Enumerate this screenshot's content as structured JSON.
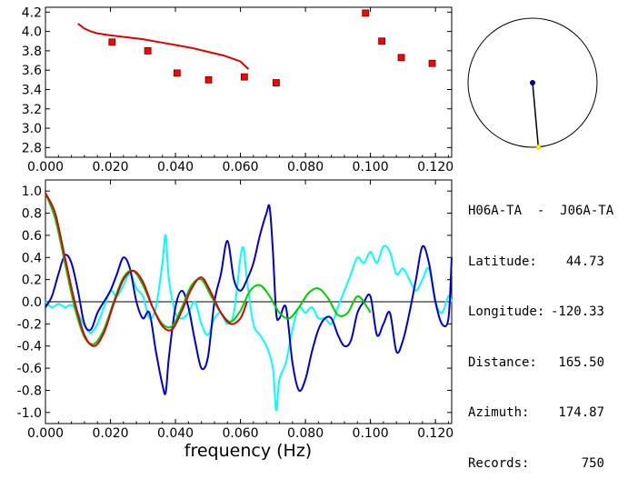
{
  "station": {
    "pair": "H06A-TA  -  J06A-TA",
    "latitude_label": "Latitude:",
    "latitude": "44.73",
    "longitude_label": "Longitude:",
    "longitude": "-120.33",
    "distance_label": "Distance:",
    "distance": "165.50",
    "azimuth_label": "Azimuth:",
    "azimuth": "174.87",
    "records_label": "Records:",
    "records": "750",
    "azimuth_deg": 174.87
  },
  "chart_data": [
    {
      "type": "scatter",
      "title": "",
      "xlim": [
        0,
        0.125
      ],
      "ylim": [
        2.7,
        4.25
      ],
      "x_ticks": [
        "0.000",
        "0.020",
        "0.040",
        "0.060",
        "0.080",
        "0.100",
        "0.120"
      ],
      "y_ticks": [
        "2.8",
        "3.0",
        "3.2",
        "3.4",
        "3.6",
        "3.8",
        "4.0",
        "4.2"
      ],
      "points": [
        [
          0.0205,
          3.89
        ],
        [
          0.0315,
          3.8
        ],
        [
          0.0405,
          3.57
        ],
        [
          0.0502,
          3.5
        ],
        [
          0.0612,
          3.53
        ],
        [
          0.071,
          3.47
        ],
        [
          0.0985,
          4.19
        ],
        [
          0.1035,
          3.9
        ],
        [
          0.1095,
          3.73
        ],
        [
          0.119,
          3.67
        ]
      ],
      "curve": [
        [
          0.01,
          4.08
        ],
        [
          0.012,
          4.03
        ],
        [
          0.014,
          4.0
        ],
        [
          0.016,
          3.98
        ],
        [
          0.02,
          3.96
        ],
        [
          0.025,
          3.94
        ],
        [
          0.03,
          3.92
        ],
        [
          0.035,
          3.89
        ],
        [
          0.04,
          3.86
        ],
        [
          0.045,
          3.83
        ],
        [
          0.05,
          3.79
        ],
        [
          0.055,
          3.75
        ],
        [
          0.06,
          3.69
        ],
        [
          0.0625,
          3.61
        ]
      ],
      "colors": {
        "points": "#ff0000",
        "curve": "#dd0000"
      }
    },
    {
      "type": "line",
      "xlim": [
        0,
        0.125
      ],
      "ylim": [
        -1.1,
        1.1
      ],
      "xlabel": "frequency (Hz)",
      "x_ticks": [
        "0.000",
        "0.020",
        "0.040",
        "0.060",
        "0.080",
        "0.100",
        "0.120"
      ],
      "y_ticks": [
        "1.0",
        "0.8",
        "0.6",
        "0.4",
        "0.2",
        "0.0",
        "-0.2",
        "-0.4",
        "-0.6",
        "-0.8",
        "-1.0"
      ],
      "series": [
        {
          "color": "#00ffff",
          "x": [
            0.0,
            0.002,
            0.004,
            0.006,
            0.008,
            0.01,
            0.012,
            0.014,
            0.016,
            0.018,
            0.02,
            0.022,
            0.024,
            0.026,
            0.028,
            0.03,
            0.032,
            0.034,
            0.036,
            0.037,
            0.038,
            0.04,
            0.042,
            0.044,
            0.046,
            0.048,
            0.05,
            0.052,
            0.054,
            0.056,
            0.058,
            0.06,
            0.061,
            0.062,
            0.064,
            0.066,
            0.068,
            0.07,
            0.071,
            0.072,
            0.074,
            0.076,
            0.078,
            0.08,
            0.082,
            0.084,
            0.086,
            0.088,
            0.09,
            0.092,
            0.094,
            0.096,
            0.098,
            0.1,
            0.102,
            0.104,
            0.106,
            0.108,
            0.11,
            0.112,
            0.114,
            0.116,
            0.118,
            0.12,
            0.122,
            0.124,
            0.125
          ],
          "y": [
            0.0,
            -0.05,
            -0.02,
            -0.05,
            -0.03,
            -0.1,
            -0.22,
            -0.28,
            -0.2,
            -0.05,
            0.1,
            0.05,
            0.15,
            0.25,
            0.12,
            0.05,
            -0.15,
            -0.05,
            0.35,
            0.6,
            0.2,
            -0.1,
            -0.15,
            -0.1,
            0.0,
            -0.2,
            -0.3,
            -0.15,
            -0.1,
            -0.2,
            -0.1,
            0.4,
            0.48,
            0.2,
            -0.2,
            -0.3,
            -0.4,
            -0.6,
            -0.98,
            -0.7,
            -0.55,
            -0.25,
            -0.05,
            -0.1,
            -0.05,
            -0.15,
            -0.15,
            -0.2,
            -0.05,
            0.1,
            0.25,
            0.4,
            0.35,
            0.45,
            0.35,
            0.5,
            0.45,
            0.25,
            0.3,
            0.2,
            0.1,
            0.2,
            0.3,
            0.0,
            -0.1,
            0.05,
            0.0
          ]
        },
        {
          "color": "#0000cc",
          "x": [
            0.0,
            0.002,
            0.004,
            0.006,
            0.008,
            0.01,
            0.012,
            0.014,
            0.016,
            0.018,
            0.02,
            0.022,
            0.024,
            0.026,
            0.028,
            0.03,
            0.032,
            0.034,
            0.036,
            0.037,
            0.038,
            0.04,
            0.042,
            0.044,
            0.046,
            0.048,
            0.05,
            0.052,
            0.054,
            0.056,
            0.058,
            0.06,
            0.062,
            0.064,
            0.066,
            0.068,
            0.069,
            0.07,
            0.071,
            0.072,
            0.074,
            0.076,
            0.078,
            0.08,
            0.082,
            0.084,
            0.086,
            0.088,
            0.09,
            0.092,
            0.094,
            0.096,
            0.098,
            0.1,
            0.102,
            0.104,
            0.106,
            0.108,
            0.11,
            0.112,
            0.114,
            0.116,
            0.118,
            0.12,
            0.122,
            0.124,
            0.125
          ],
          "y": [
            -0.05,
            0.05,
            0.25,
            0.42,
            0.35,
            0.1,
            -0.2,
            -0.25,
            -0.1,
            0.0,
            0.1,
            0.25,
            0.4,
            0.3,
            0.0,
            -0.15,
            -0.1,
            -0.45,
            -0.75,
            -0.82,
            -0.5,
            -0.05,
            0.1,
            -0.05,
            -0.35,
            -0.6,
            -0.5,
            0.0,
            0.25,
            0.55,
            0.2,
            0.1,
            0.2,
            0.35,
            0.6,
            0.8,
            0.85,
            0.45,
            -0.1,
            -0.15,
            -0.05,
            -0.55,
            -0.8,
            -0.7,
            -0.45,
            -0.25,
            -0.15,
            -0.15,
            -0.3,
            -0.4,
            -0.35,
            -0.1,
            0.0,
            0.05,
            -0.3,
            -0.2,
            -0.1,
            -0.45,
            -0.35,
            -0.1,
            0.2,
            0.5,
            0.35,
            0.0,
            -0.2,
            -0.15,
            0.4
          ]
        },
        {
          "color": "#00cc00",
          "x": [
            0.0,
            0.003,
            0.006,
            0.009,
            0.012,
            0.015,
            0.018,
            0.021,
            0.024,
            0.027,
            0.03,
            0.033,
            0.036,
            0.039,
            0.042,
            0.045,
            0.048,
            0.051,
            0.054,
            0.057,
            0.06,
            0.063,
            0.066,
            0.069,
            0.072,
            0.075,
            0.078,
            0.081,
            0.084,
            0.087,
            0.09,
            0.093,
            0.096,
            0.099,
            0.1
          ],
          "y": [
            0.98,
            0.75,
            0.35,
            -0.05,
            -0.32,
            -0.38,
            -0.25,
            0.0,
            0.22,
            0.28,
            0.15,
            -0.05,
            -0.2,
            -0.22,
            -0.05,
            0.15,
            0.2,
            0.05,
            -0.1,
            -0.18,
            -0.08,
            0.1,
            0.15,
            0.05,
            -0.1,
            -0.15,
            -0.05,
            0.08,
            0.12,
            0.03,
            -0.12,
            -0.1,
            0.05,
            -0.05,
            -0.1
          ]
        },
        {
          "color": "#dd0000",
          "x": [
            0.0,
            0.003,
            0.006,
            0.009,
            0.012,
            0.015,
            0.018,
            0.021,
            0.024,
            0.027,
            0.03,
            0.033,
            0.036,
            0.039,
            0.042,
            0.045,
            0.048,
            0.051,
            0.054,
            0.057,
            0.06,
            0.062
          ],
          "y": [
            0.98,
            0.8,
            0.4,
            0.0,
            -0.3,
            -0.4,
            -0.28,
            -0.02,
            0.2,
            0.28,
            0.18,
            -0.05,
            -0.22,
            -0.25,
            -0.08,
            0.12,
            0.22,
            0.08,
            -0.1,
            -0.2,
            -0.15,
            0.0
          ]
        }
      ]
    }
  ]
}
